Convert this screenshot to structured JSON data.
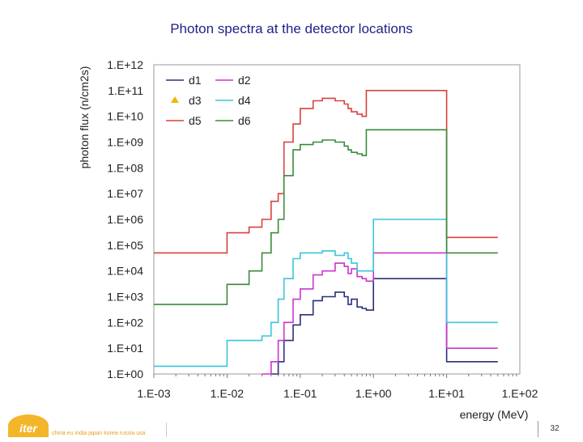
{
  "slide": {
    "title": "Photon spectra at the detector locations",
    "page_number": "32",
    "footer_logo_text": "iter",
    "footer_members": "china eu india japan korea russia usa"
  },
  "chart_data": {
    "type": "line",
    "title": "",
    "xlabel": "energy (MeV)",
    "ylabel": "photon flux (n/cm2s)",
    "x_scale": "log",
    "y_scale": "log",
    "xlim": [
      0.001,
      100
    ],
    "ylim": [
      1,
      1000000000000.0
    ],
    "x_tick_labels": [
      "1.E-03",
      "1.E-02",
      "1.E-01",
      "1.E+00",
      "1.E+01",
      "1.E+02"
    ],
    "y_tick_labels": [
      "1.E+00",
      "1.E+01",
      "1.E+02",
      "1.E+03",
      "1.E+04",
      "1.E+05",
      "1.E+06",
      "1.E+07",
      "1.E+08",
      "1.E+09",
      "1.E+10",
      "1.E+11",
      "1.E+12"
    ],
    "grid": "off",
    "legend_position": "top-left",
    "series": [
      {
        "name": "d1",
        "color": "#2b2f7a",
        "style": "step",
        "x": [
          0.04,
          0.05,
          0.06,
          0.08,
          0.1,
          0.15,
          0.2,
          0.3,
          0.4,
          0.45,
          0.5,
          0.6,
          0.7,
          0.8,
          1,
          10,
          50
        ],
        "y": [
          1,
          3,
          20,
          80,
          200,
          700,
          1000,
          1500,
          1000,
          500,
          800,
          400,
          350,
          300,
          5000,
          3,
          3
        ]
      },
      {
        "name": "d2",
        "color": "#cc33cc",
        "style": "step",
        "x": [
          0.03,
          0.04,
          0.05,
          0.06,
          0.08,
          0.1,
          0.15,
          0.2,
          0.3,
          0.4,
          0.45,
          0.5,
          0.6,
          0.7,
          0.8,
          1,
          10,
          50
        ],
        "y": [
          1,
          3,
          20,
          100,
          800,
          2000,
          7000,
          10000,
          20000,
          15000,
          8000,
          12000,
          6000,
          5000,
          4000,
          50000,
          10,
          10
        ]
      },
      {
        "name": "d3",
        "color": "#f2b705",
        "style": "marker",
        "x": [],
        "y": []
      },
      {
        "name": "d4",
        "color": "#3cc4dc",
        "style": "step",
        "x": [
          0.001,
          0.01,
          0.02,
          0.03,
          0.04,
          0.05,
          0.06,
          0.08,
          0.1,
          0.15,
          0.2,
          0.3,
          0.4,
          0.45,
          0.5,
          0.6,
          0.7,
          0.8,
          1,
          10,
          50
        ],
        "y": [
          2,
          20,
          20,
          30,
          100,
          800,
          5000,
          30000,
          50000,
          50000,
          60000,
          40000,
          50000,
          30000,
          20000,
          10000,
          10000,
          10000,
          1000000,
          100,
          100
        ]
      },
      {
        "name": "d5",
        "color": "#d94040",
        "style": "step",
        "x": [
          0.001,
          0.01,
          0.02,
          0.03,
          0.04,
          0.05,
          0.06,
          0.08,
          0.1,
          0.15,
          0.2,
          0.3,
          0.4,
          0.45,
          0.5,
          0.6,
          0.7,
          0.8,
          1,
          10,
          50
        ],
        "y": [
          50000,
          300000,
          500000,
          1000000,
          5000000,
          10000000,
          1000000000,
          5000000000,
          20000000000,
          40000000000,
          50000000000,
          40000000000,
          30000000000,
          20000000000,
          15000000000,
          12000000000,
          10000000000,
          100000000000,
          100000000000,
          200000,
          200000
        ]
      },
      {
        "name": "d6",
        "color": "#3a8a3a",
        "style": "step",
        "x": [
          0.001,
          0.01,
          0.02,
          0.03,
          0.04,
          0.05,
          0.06,
          0.08,
          0.1,
          0.15,
          0.2,
          0.3,
          0.4,
          0.45,
          0.5,
          0.6,
          0.7,
          0.8,
          1,
          10,
          50
        ],
        "y": [
          500,
          3000,
          10000,
          50000,
          300000,
          1000000,
          50000000,
          500000000,
          800000000,
          1000000000,
          1200000000,
          1000000000,
          700000000,
          500000000,
          400000000,
          350000000,
          300000000,
          3000000000,
          3000000000,
          50000,
          50000
        ]
      }
    ]
  }
}
